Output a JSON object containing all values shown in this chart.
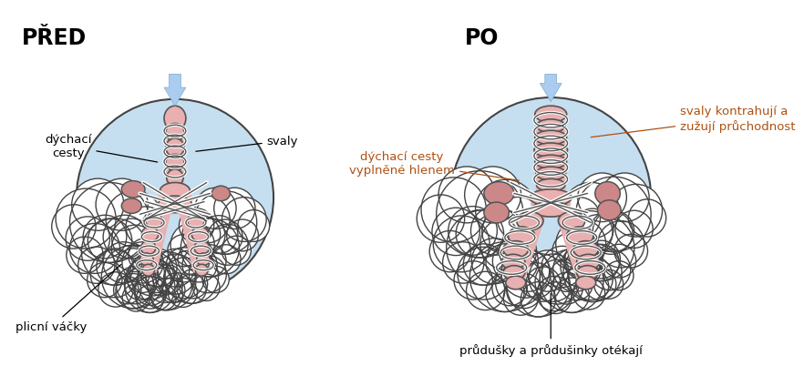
{
  "title_left": "PŘED",
  "title_right": "PO",
  "title_color": "#000000",
  "title_fontsize": 17,
  "label_color": "#000000",
  "label_color_right": "#b05010",
  "label_fontsize": 9.5,
  "bg_color": "#ffffff",
  "circle_fill": "#c5dff0",
  "circle_edge": "#444444",
  "airway_fill_light": "#e8b0b0",
  "airway_fill_dark": "#cc8888",
  "airway_edge": "#555555",
  "cloud_fill": "#ffffff",
  "cloud_edge": "#444444",
  "arrow_color_light": "#aaccee",
  "arrow_color_dark": "#7aaccc",
  "muscle_band_color": "#ffffff",
  "muscle_band_edge": "#555555",
  "labels_left": {
    "dychaci_cesty": "dýchací\ncesty",
    "svaly": "svaly",
    "plicni_vacky": "plicní váčky"
  },
  "labels_right": {
    "svaly_kontrahují": "svaly kontrahují a\nzužují průchodnost",
    "dychaci_cesty_hlen": "dýchací cesty\nvyplněné hlenem",
    "pruducky": "průdušky a průdušinky otékají"
  }
}
